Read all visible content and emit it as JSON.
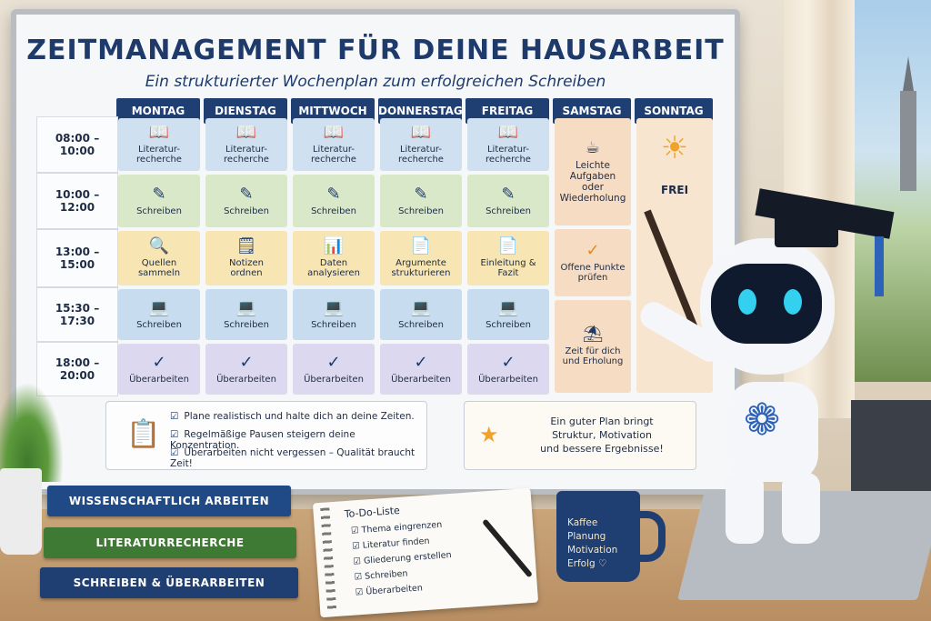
{
  "board": {
    "title": "ZEITMANAGEMENT FÜR DEINE HAUSARBEIT",
    "subtitle": "Ein strukturierter Wochenplan zum erfolgreichen Schreiben"
  },
  "days": [
    "MONTAG",
    "DIENSTAG",
    "MITTWOCH",
    "DONNERSTAG",
    "FREITAG",
    "SAMSTAG",
    "SONNTAG"
  ],
  "times": [
    "08:00 – 10:00",
    "10:00 – 12:00",
    "13:00 – 15:00",
    "15:30 – 17:30",
    "18:00 – 20:00"
  ],
  "weekday_rows": [
    {
      "icon": "book-icon",
      "cells": [
        "Literatur-\nrecherche",
        "Literatur-\nrecherche",
        "Literatur-\nrecherche",
        "Literatur-\nrecherche",
        "Literatur-\nrecherche"
      ]
    },
    {
      "icon": "pencil-icon",
      "cells": [
        "Schreiben",
        "Schreiben",
        "Schreiben",
        "Schreiben",
        "Schreiben"
      ]
    },
    {
      "icons": [
        "magnifier-icon",
        "notes-icon",
        "chart-icon",
        "document-icon",
        "document-icon"
      ],
      "cells": [
        "Quellen\nsammeln",
        "Notizen\nordnen",
        "Daten\nanalysieren",
        "Argumente\nstrukturieren",
        "Einleitung &\nFazit"
      ]
    },
    {
      "icon": "laptop-icon",
      "cells": [
        "Schreiben",
        "Schreiben",
        "Schreiben",
        "Schreiben",
        "Schreiben"
      ]
    },
    {
      "icon": "check-icon",
      "cells": [
        "Überarbeiten",
        "Überarbeiten",
        "Überarbeiten",
        "Überarbeiten",
        "Überarbeiten"
      ]
    }
  ],
  "saturday": {
    "block1": "Leichte\nAufgaben\noder\nWiederholung",
    "block2": "Offene Punkte\nprüfen",
    "block3": "Zeit für dich\nund Erholung"
  },
  "sunday": {
    "label": "FREI"
  },
  "tips": [
    "Plane realistisch und halte dich an deine Zeiten.",
    "Regelmäßige Pausen steigern deine Konzentration.",
    "Überarbeiten nicht vergessen – Qualität braucht Zeit!"
  ],
  "quote": "Ein guter Plan bringt\nStruktur, Motivation\nund bessere Ergebnisse!",
  "books": [
    "WISSENSCHAFTLICH ARBEITEN",
    "LITERATURRECHERCHE",
    "SCHREIBEN & ÜBERARBEITEN"
  ],
  "todo": {
    "title": "To-Do-Liste",
    "items": [
      "Thema eingrenzen",
      "Literatur finden",
      "Gliederung erstellen",
      "Schreiben",
      "Überarbeiten"
    ]
  },
  "mug": [
    "Kaffee",
    "Planung",
    "Motivation",
    "Erfolg ♡"
  ],
  "colors": {
    "navy": "#1f3f73",
    "blue": "#cfe0f1",
    "green": "#d8e8c8",
    "yellow": "#f7e6b3",
    "purple": "#dcd8ef",
    "saturday": "#f6dcc3",
    "sunday": "#f8e5cf"
  }
}
